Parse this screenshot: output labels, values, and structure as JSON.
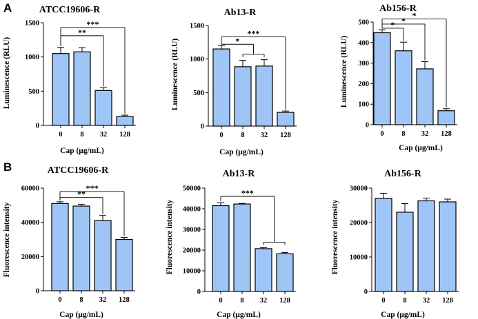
{
  "panels": [
    {
      "letter": "A"
    },
    {
      "letter": "B"
    }
  ],
  "colors": {
    "bar_fill": "#9fc5f6",
    "bar_stroke": "#000000",
    "axis": "#000000"
  },
  "chart_data": [
    {
      "type": "bar",
      "panel": "A",
      "title": "ATCC19606-R",
      "xlabel": "Cap (μg/mL)",
      "ylabel": "Luminescence (RLU)",
      "categories": [
        "0",
        "8",
        "32",
        "128"
      ],
      "values": [
        1050,
        1075,
        510,
        130
      ],
      "errors": [
        90,
        60,
        40,
        20
      ],
      "ylim": [
        0,
        1500
      ],
      "yticks": [
        0,
        500,
        1000,
        1500
      ],
      "ytick_labels": [
        "0",
        "500",
        "1000",
        "1500"
      ],
      "significance": [
        {
          "from": 0,
          "to": 2,
          "y": 1310,
          "label": "**"
        },
        {
          "from": 0,
          "to": 3,
          "y": 1430,
          "label": "***"
        }
      ]
    },
    {
      "type": "bar",
      "panel": "A",
      "title": "Ab13-R",
      "xlabel": "Cap (μg/mL)",
      "ylabel": "Luminescence (RLU)",
      "categories": [
        "0",
        "8",
        "32",
        "128"
      ],
      "values": [
        1150,
        885,
        895,
        205
      ],
      "errors": [
        50,
        95,
        95,
        20
      ],
      "ylim": [
        0,
        1500
      ],
      "yticks": [
        0,
        500,
        1000,
        1500
      ],
      "ytick_labels": [
        "0",
        "500",
        "1000",
        "1500"
      ],
      "significance": [
        {
          "from": 0,
          "to": [
            1,
            2
          ],
          "y": 1220,
          "label": "*"
        },
        {
          "from": 0,
          "to": 3,
          "y": 1330,
          "label": "***"
        }
      ]
    },
    {
      "type": "bar",
      "panel": "A",
      "title": "Ab156-R",
      "xlabel": "Cap (μg/mL)",
      "ylabel": "Luminescence (RLU)",
      "categories": [
        "0",
        "8",
        "32",
        "128"
      ],
      "values": [
        448,
        360,
        272,
        68
      ],
      "errors": [
        15,
        42,
        35,
        10
      ],
      "ylim": [
        0,
        500
      ],
      "yticks": [
        0,
        100,
        200,
        300,
        400,
        500
      ],
      "ytick_labels": [
        "0",
        "100",
        "200",
        "300",
        "400",
        "500"
      ],
      "significance": [
        {
          "from": 0,
          "to": 1,
          "y": 470,
          "label": "*"
        },
        {
          "from": 0,
          "to": 2,
          "y": 490,
          "label": "*"
        },
        {
          "from": 0,
          "to": 3,
          "y": 515,
          "label": "*"
        }
      ]
    },
    {
      "type": "bar",
      "panel": "B",
      "title": "ATCC19606-R",
      "xlabel": "Cap (μg/mL)",
      "ylabel": "Fluorescence intensity",
      "categories": [
        "0",
        "8",
        "32",
        "128"
      ],
      "values": [
        51000,
        49500,
        41000,
        30000
      ],
      "errors": [
        1000,
        1000,
        3000,
        1200
      ],
      "ylim": [
        0,
        60000
      ],
      "yticks": [
        0,
        20000,
        40000,
        60000
      ],
      "ytick_labels": [
        "0",
        "20000",
        "40000",
        "60000"
      ],
      "significance": [
        {
          "from": 0,
          "to": 2,
          "y": 54500,
          "label": "**"
        },
        {
          "from": 0,
          "to": 3,
          "y": 58000,
          "label": "***"
        }
      ]
    },
    {
      "type": "bar",
      "panel": "B",
      "title": "Ab13-R",
      "xlabel": "Cap (μg/mL)",
      "ylabel": "Fluorescence intensity",
      "categories": [
        "0",
        "8",
        "32",
        "128"
      ],
      "values": [
        41500,
        42300,
        20700,
        18200
      ],
      "errors": [
        1500,
        300,
        500,
        600
      ],
      "ylim": [
        0,
        50000
      ],
      "yticks": [
        0,
        10000,
        20000,
        30000,
        40000,
        50000
      ],
      "ytick_labels": [
        "0",
        "10000",
        "20000",
        "30000",
        "40000",
        "50000"
      ],
      "significance": [
        {
          "from": 0,
          "to": [
            2,
            3
          ],
          "y": 46000,
          "label": "***"
        }
      ]
    },
    {
      "type": "bar",
      "panel": "B",
      "title": "Ab156-R",
      "xlabel": "Cap (μg/mL)",
      "ylabel": "Fluorescence intensity",
      "categories": [
        "0",
        "8",
        "32",
        "128"
      ],
      "values": [
        27000,
        23000,
        26300,
        26000
      ],
      "errors": [
        1500,
        2500,
        800,
        800
      ],
      "ylim": [
        0,
        30000
      ],
      "yticks": [
        0,
        10000,
        20000,
        30000
      ],
      "ytick_labels": [
        "0",
        "10000",
        "20000",
        "30000"
      ],
      "significance": []
    }
  ]
}
